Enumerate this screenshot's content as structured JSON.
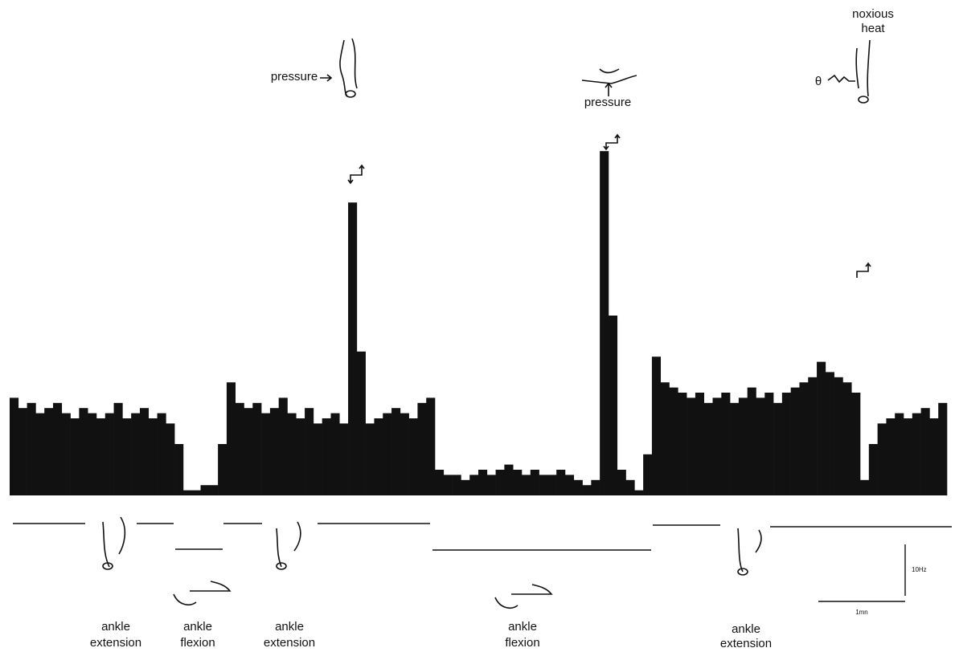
{
  "chart_data": {
    "type": "histogram",
    "color": "#111111",
    "bins": [
      0,
      0.1,
      0.2,
      0.3,
      0.4,
      0.5,
      0.6,
      0.7,
      0.8,
      0.9,
      1,
      1.1,
      1.2,
      1.3,
      1.4,
      1.5,
      1.6,
      1.7,
      1.8,
      1.9,
      2,
      2.1,
      2.2,
      2.3,
      2.4,
      2.5,
      2.6,
      2.7,
      2.8,
      2.9,
      3,
      3.1,
      3.2,
      3.3,
      3.4,
      3.5,
      3.6,
      3.7,
      3.8,
      3.9,
      4,
      4.1,
      4.2,
      4.3,
      4.4,
      4.5,
      4.6,
      4.7,
      4.8,
      4.9,
      5,
      5.1,
      5.2,
      5.3,
      5.4,
      5.5,
      5.6,
      5.7,
      5.8,
      5.9,
      6,
      6.1,
      6.2,
      6.3,
      6.4,
      6.5,
      6.6,
      6.7,
      6.8,
      6.9,
      7,
      7.1,
      7.2,
      7.3,
      7.4,
      7.5,
      7.6,
      7.7,
      7.8,
      7.9,
      8,
      8.1,
      8.2,
      8.3,
      8.4,
      8.5,
      8.6,
      8.7,
      8.8,
      8.9,
      9,
      9.1,
      9.2,
      9.3,
      9.4,
      9.5,
      9.6,
      9.7,
      9.8,
      9.9,
      10,
      10.1,
      10.2,
      10.3,
      10.4,
      10.5,
      10.6,
      10.7,
      10.8
    ],
    "values": [
      19,
      17,
      18,
      16,
      17,
      18,
      16,
      15,
      17,
      16,
      15,
      16,
      18,
      15,
      16,
      17,
      15,
      16,
      14,
      10,
      1,
      1,
      2,
      2,
      10,
      22,
      18,
      17,
      18,
      16,
      17,
      19,
      16,
      15,
      17,
      14,
      15,
      16,
      14,
      57,
      28,
      14,
      15,
      16,
      17,
      16,
      15,
      18,
      19,
      5,
      4,
      4,
      3,
      4,
      5,
      4,
      5,
      6,
      5,
      4,
      5,
      4,
      4,
      5,
      4,
      3,
      2,
      3,
      67,
      35,
      5,
      3,
      1,
      8,
      27,
      22,
      21,
      20,
      19,
      20,
      18,
      19,
      20,
      18,
      19,
      21,
      19,
      20,
      18,
      20,
      21,
      22,
      23,
      26,
      24,
      23,
      22,
      20,
      3,
      10,
      14,
      15,
      16,
      15,
      16,
      17,
      15,
      18
    ],
    "xlim": [
      0,
      10.8
    ],
    "ylim": [
      0,
      80
    ],
    "stimuli": [
      "pressure",
      "pressure",
      [
        "noxious",
        "heat"
      ],
      "θ"
    ],
    "movements": [
      [
        "ankle",
        "extension"
      ],
      [
        "ankle",
        "flexion"
      ],
      [
        "ankle",
        "extension"
      ],
      [
        "ankle",
        "flexion"
      ],
      [
        "ankle",
        "extension"
      ]
    ],
    "scale_bars": [
      {
        "value": 10,
        "label": "10Hz"
      },
      {
        "value": 1,
        "label": "1mn"
      }
    ]
  }
}
